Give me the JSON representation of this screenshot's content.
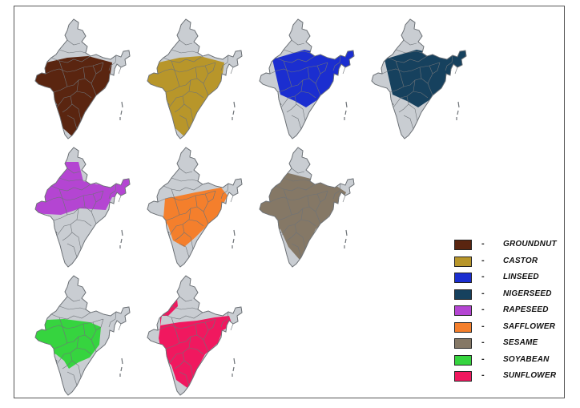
{
  "legend": {
    "items": [
      {
        "label": "GROUNDNUT",
        "color": "#5a2510"
      },
      {
        "label": "CASTOR",
        "color": "#b8962a"
      },
      {
        "label": "LINSEED",
        "color": "#1b2ed0"
      },
      {
        "label": "NIGERSEED",
        "color": "#16415e"
      },
      {
        "label": "RAPESEED",
        "color": "#b445d2"
      },
      {
        "label": "SAFFLOWER",
        "color": "#f47f2c"
      },
      {
        "label": "SESAME",
        "color": "#857866"
      },
      {
        "label": "SOYABEAN",
        "color": "#36d43f"
      },
      {
        "label": "SUNFLOWER",
        "color": "#f0185f"
      }
    ],
    "separator": "-"
  },
  "map_colors": {
    "base": "#c9cdd2",
    "border": "#6e7378"
  },
  "maps": [
    {
      "crop": "GROUNDNUT",
      "color": "#5a2510",
      "highlight": "west-south-belt"
    },
    {
      "crop": "CASTOR",
      "color": "#b8962a",
      "highlight": "west-south-belt"
    },
    {
      "crop": "LINSEED",
      "color": "#1b2ed0",
      "highlight": "central-east-belt"
    },
    {
      "crop": "NIGERSEED",
      "color": "#16415e",
      "highlight": "central-east-belt"
    },
    {
      "crop": "RAPESEED",
      "color": "#b445d2",
      "highlight": "northern-belt"
    },
    {
      "crop": "SAFFLOWER",
      "color": "#f47f2c",
      "highlight": "central-belt"
    },
    {
      "crop": "SESAME",
      "color": "#857866",
      "highlight": "broad-belt"
    },
    {
      "crop": "SOYABEAN",
      "color": "#36d43f",
      "highlight": "central-west-belt"
    },
    {
      "crop": "SUNFLOWER",
      "color": "#f0185f",
      "highlight": "central-south-east-belt"
    }
  ]
}
